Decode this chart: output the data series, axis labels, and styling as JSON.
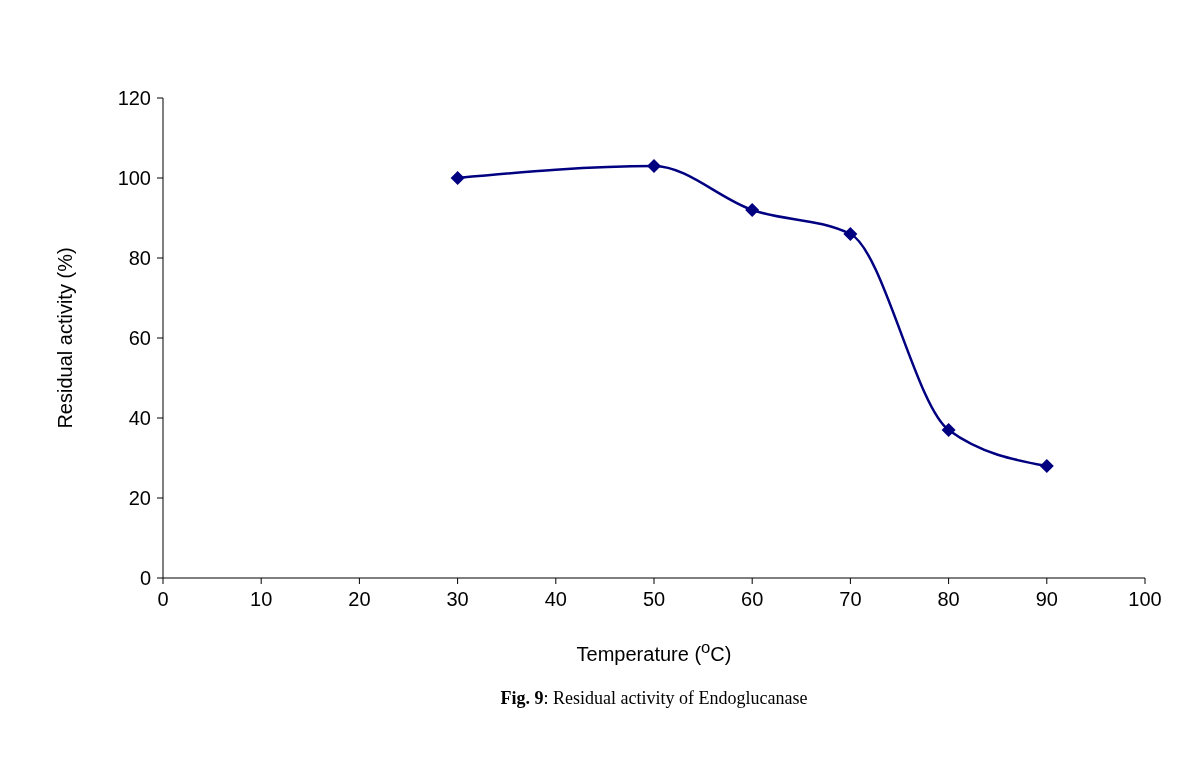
{
  "chart_data": {
    "type": "line",
    "xlabel": "Temperature ($^{o}$C)",
    "ylabel": "Residual activity (%)",
    "x": [
      30,
      50,
      60,
      70,
      80,
      90
    ],
    "series": [
      {
        "color": "#000080",
        "values": [
          100,
          103,
          92,
          86,
          37,
          28
        ]
      }
    ],
    "xlim": [
      0,
      100
    ],
    "xticks": [
      0,
      10,
      20,
      30,
      40,
      50,
      60,
      70,
      80,
      90,
      100
    ],
    "ylim": [
      0,
      120
    ],
    "yticks": [
      0,
      20,
      40,
      60,
      80,
      100,
      120
    ],
    "marker": "diamond",
    "line_style": "solid",
    "grid": false,
    "annotations": [
      "Fig. 9: Residual activity of Endoglucanase"
    ]
  }
}
